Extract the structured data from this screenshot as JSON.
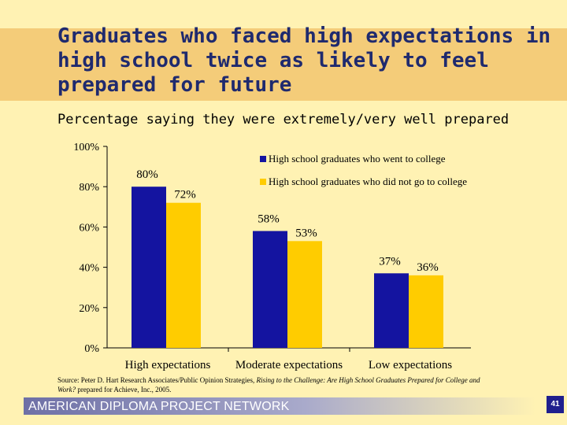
{
  "slide": {
    "title": "Graduates who faced high expectations in high school twice as likely to feel prepared for future",
    "subtitle": "Percentage saying they were extremely/very well prepared",
    "source_prefix": "Source: Peter D. Hart Research Associates/Public Opinion Strategies, ",
    "source_italic": "Rising to the Challenge: Are High School Graduates Prepared for College and Work?",
    "source_suffix": " prepared for Achieve, Inc., 2005.",
    "footer": "AMERICAN DIPLOMA PROJECT NETWORK",
    "page_number": "41"
  },
  "colors": {
    "series_college": "#1414A0",
    "series_no_college": "#FFCC00",
    "title_band": "#F4CC79",
    "background": "#FFF2B3"
  },
  "chart_data": {
    "type": "bar",
    "categories": [
      "High expectations",
      "Moderate expectations",
      "Low expectations"
    ],
    "series": [
      {
        "name": "High school graduates who went to college",
        "values": [
          80,
          58,
          37
        ],
        "labels": [
          "80%",
          "58%",
          "37%"
        ]
      },
      {
        "name": "High school graduates who did not go to college",
        "values": [
          72,
          53,
          36
        ],
        "labels": [
          "72%",
          "53%",
          "36%"
        ]
      }
    ],
    "ylim": [
      0,
      100
    ],
    "yticks": [
      0,
      20,
      40,
      60,
      80,
      100
    ],
    "ytick_labels": [
      "0%",
      "20%",
      "40%",
      "60%",
      "80%",
      "100%"
    ],
    "xlabel": "",
    "ylabel": "",
    "legend_position": "top-right"
  }
}
